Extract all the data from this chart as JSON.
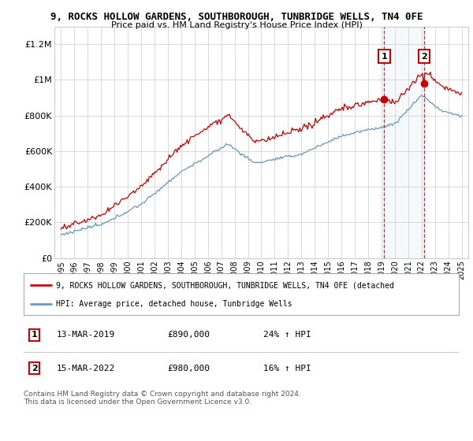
{
  "title1": "9, ROCKS HOLLOW GARDENS, SOUTHBOROUGH, TUNBRIDGE WELLS, TN4 0FE",
  "title2": "Price paid vs. HM Land Registry's House Price Index (HPI)",
  "ylim": [
    0,
    1300000
  ],
  "yticks": [
    0,
    200000,
    400000,
    600000,
    800000,
    1000000,
    1200000
  ],
  "ytick_labels": [
    "£0",
    "£200K",
    "£400K",
    "£600K",
    "£800K",
    "£1M",
    "£1.2M"
  ],
  "legend_label1": "9, ROCKS HOLLOW GARDENS, SOUTHBOROUGH, TUNBRIDGE WELLS, TN4 0FE (detached",
  "legend_label2": "HPI: Average price, detached house, Tunbridge Wells",
  "sale1_date": "13-MAR-2019",
  "sale1_price": "£890,000",
  "sale1_hpi": "24% ↑ HPI",
  "sale1_year": 2019.2,
  "sale1_price_val": 890000,
  "sale2_date": "15-MAR-2022",
  "sale2_price": "£980,000",
  "sale2_hpi": "16% ↑ HPI",
  "sale2_year": 2022.2,
  "sale2_price_val": 980000,
  "footer": "Contains HM Land Registry data © Crown copyright and database right 2024.\nThis data is licensed under the Open Government Licence v3.0.",
  "red_color": "#cc0000",
  "blue_color": "#6699bb",
  "shade_color": "#ddeeff",
  "grid_color": "#cccccc",
  "xlim_left": 1994.5,
  "xlim_right": 2025.5
}
